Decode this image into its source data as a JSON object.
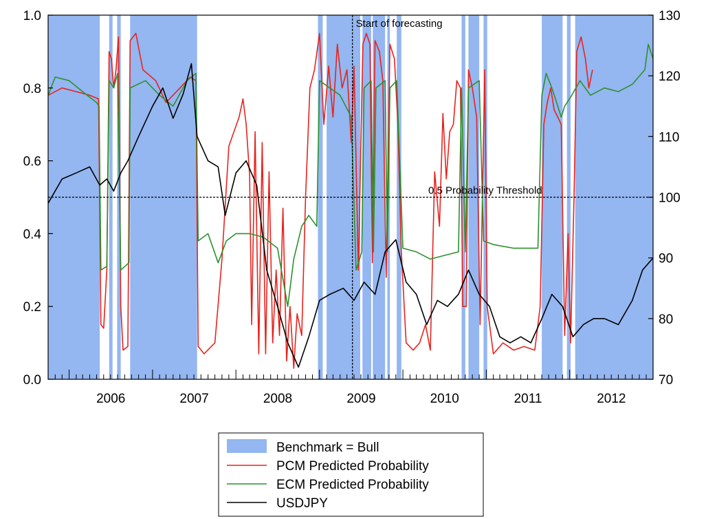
{
  "chart_data": {
    "type": "line",
    "title": "",
    "xlabel": "",
    "ylabel": "",
    "x_range": [
      "2005-10-01",
      "2012-12-31"
    ],
    "year_labels": [
      "2006",
      "2007",
      "2008",
      "2009",
      "2010",
      "2011",
      "2012"
    ],
    "y_left": {
      "lim": [
        0.0,
        1.0
      ],
      "ticks": [
        "0.0",
        "0.2",
        "0.4",
        "0.6",
        "0.8",
        "1.0"
      ]
    },
    "y_right": {
      "lim": [
        70,
        130
      ],
      "ticks": [
        "70",
        "80",
        "90",
        "100",
        "110",
        "120",
        "130"
      ]
    },
    "grid": false,
    "colors": {
      "bull": "#94b6f1",
      "pcm": "#e8221c",
      "ecm": "#2a912a",
      "usdjpy": "#000000"
    },
    "bull_periods": [
      [
        "2005-10-01",
        "2006-05-15"
      ],
      [
        "2006-06-25",
        "2006-07-10"
      ],
      [
        "2006-07-30",
        "2006-08-15"
      ],
      [
        "2006-09-25",
        "2007-07-15"
      ],
      [
        "2008-12-25",
        "2009-01-15"
      ],
      [
        "2009-02-01",
        "2009-06-28"
      ],
      [
        "2009-07-08",
        "2009-08-15"
      ],
      [
        "2009-08-22",
        "2009-10-15"
      ],
      [
        "2009-10-25",
        "2009-11-05"
      ],
      [
        "2009-12-05",
        "2009-12-25"
      ],
      [
        "2010-09-15",
        "2010-10-01"
      ],
      [
        "2010-10-15",
        "2010-12-01"
      ],
      [
        "2010-12-20",
        "2011-01-05"
      ],
      [
        "2011-09-01",
        "2011-12-01"
      ],
      [
        "2011-12-20",
        "2012-01-05"
      ],
      [
        "2012-01-25",
        "2012-12-31"
      ]
    ],
    "threshold": {
      "value": 0.5,
      "label": "0.5 Probability Threshold"
    },
    "forecast_start": {
      "date": "2009-05-25",
      "label": "Start of forecasting"
    },
    "series": [
      {
        "name": "PCM Predicted Probability",
        "axis": "left",
        "points": [
          [
            "2005-10-01",
            0.78
          ],
          [
            "2005-12-01",
            0.8
          ],
          [
            "2006-02-01",
            0.79
          ],
          [
            "2006-04-01",
            0.78
          ],
          [
            "2006-05-10",
            0.77
          ],
          [
            "2006-05-20",
            0.15
          ],
          [
            "2006-06-01",
            0.14
          ],
          [
            "2006-06-15",
            0.3
          ],
          [
            "2006-06-25",
            0.9
          ],
          [
            "2006-07-05",
            0.88
          ],
          [
            "2006-07-15",
            0.8
          ],
          [
            "2006-07-25",
            0.85
          ],
          [
            "2006-08-05",
            0.94
          ],
          [
            "2006-08-15",
            0.2
          ],
          [
            "2006-08-25",
            0.08
          ],
          [
            "2006-09-15",
            0.09
          ],
          [
            "2006-09-25",
            0.93
          ],
          [
            "2006-10-20",
            0.95
          ],
          [
            "2006-11-20",
            0.85
          ],
          [
            "2007-01-15",
            0.82
          ],
          [
            "2007-03-01",
            0.76
          ],
          [
            "2007-05-01",
            0.8
          ],
          [
            "2007-06-15",
            0.83
          ],
          [
            "2007-07-10",
            0.82
          ],
          [
            "2007-07-20",
            0.09
          ],
          [
            "2007-08-15",
            0.07
          ],
          [
            "2007-10-01",
            0.1
          ],
          [
            "2007-11-01",
            0.33
          ],
          [
            "2007-12-01",
            0.64
          ],
          [
            "2008-01-15",
            0.72
          ],
          [
            "2008-02-01",
            0.77
          ],
          [
            "2008-02-15",
            0.7
          ],
          [
            "2008-03-01",
            0.56
          ],
          [
            "2008-03-10",
            0.15
          ],
          [
            "2008-03-25",
            0.68
          ],
          [
            "2008-04-10",
            0.07
          ],
          [
            "2008-04-25",
            0.65
          ],
          [
            "2008-05-10",
            0.07
          ],
          [
            "2008-05-25",
            0.57
          ],
          [
            "2008-06-10",
            0.1
          ],
          [
            "2008-06-25",
            0.3
          ],
          [
            "2008-07-10",
            0.12
          ],
          [
            "2008-07-25",
            0.47
          ],
          [
            "2008-08-10",
            0.05
          ],
          [
            "2008-08-25",
            0.2
          ],
          [
            "2008-09-10",
            0.03
          ],
          [
            "2008-09-25",
            0.18
          ],
          [
            "2008-10-15",
            0.12
          ],
          [
            "2008-11-01",
            0.5
          ],
          [
            "2008-11-20",
            0.8
          ],
          [
            "2008-12-10",
            0.85
          ],
          [
            "2009-01-01",
            0.95
          ],
          [
            "2009-01-20",
            0.7
          ],
          [
            "2009-02-10",
            0.86
          ],
          [
            "2009-03-01",
            0.72
          ],
          [
            "2009-03-20",
            0.92
          ],
          [
            "2009-04-10",
            0.8
          ],
          [
            "2009-05-01",
            0.85
          ],
          [
            "2009-05-20",
            0.65
          ],
          [
            "2009-06-01",
            0.86
          ],
          [
            "2009-06-20",
            0.3
          ],
          [
            "2009-07-10",
            0.92
          ],
          [
            "2009-07-25",
            0.95
          ],
          [
            "2009-08-10",
            0.92
          ],
          [
            "2009-08-20",
            0.32
          ],
          [
            "2009-09-01",
            0.93
          ],
          [
            "2009-09-20",
            0.9
          ],
          [
            "2009-10-05",
            0.82
          ],
          [
            "2009-10-20",
            0.28
          ],
          [
            "2009-11-05",
            0.92
          ],
          [
            "2009-11-25",
            0.88
          ],
          [
            "2009-12-10",
            0.7
          ],
          [
            "2009-12-25",
            0.35
          ],
          [
            "2010-01-15",
            0.1
          ],
          [
            "2010-02-15",
            0.08
          ],
          [
            "2010-03-15",
            0.1
          ],
          [
            "2010-04-10",
            0.15
          ],
          [
            "2010-05-01",
            0.08
          ],
          [
            "2010-05-20",
            0.57
          ],
          [
            "2010-06-10",
            0.42
          ],
          [
            "2010-06-25",
            0.73
          ],
          [
            "2010-07-10",
            0.55
          ],
          [
            "2010-07-25",
            0.68
          ],
          [
            "2010-08-10",
            0.7
          ],
          [
            "2010-08-25",
            0.82
          ],
          [
            "2010-09-10",
            0.8
          ],
          [
            "2010-09-20",
            0.2
          ],
          [
            "2010-10-05",
            0.2
          ],
          [
            "2010-10-15",
            0.85
          ],
          [
            "2010-11-01",
            0.8
          ],
          [
            "2010-11-20",
            0.72
          ],
          [
            "2010-12-05",
            0.15
          ],
          [
            "2010-12-25",
            0.85
          ],
          [
            "2011-01-05",
            0.2
          ],
          [
            "2011-02-01",
            0.07
          ],
          [
            "2011-03-15",
            0.1
          ],
          [
            "2011-05-01",
            0.08
          ],
          [
            "2011-06-15",
            0.09
          ],
          [
            "2011-08-01",
            0.08
          ],
          [
            "2011-08-25",
            0.2
          ],
          [
            "2011-09-10",
            0.7
          ],
          [
            "2011-09-25",
            0.76
          ],
          [
            "2011-10-10",
            0.8
          ],
          [
            "2011-10-25",
            0.74
          ],
          [
            "2011-11-10",
            0.72
          ],
          [
            "2011-11-25",
            0.7
          ],
          [
            "2011-12-10",
            0.12
          ],
          [
            "2011-12-25",
            0.4
          ],
          [
            "2012-01-05",
            0.1
          ],
          [
            "2012-01-20",
            0.5
          ],
          [
            "2012-02-01",
            0.9
          ],
          [
            "2012-02-20",
            0.94
          ],
          [
            "2012-03-10",
            0.88
          ],
          [
            "2012-03-25",
            0.8
          ],
          [
            "2012-04-10",
            0.85
          ]
        ]
      },
      {
        "name": "ECM Predicted Probability",
        "axis": "left",
        "points": [
          [
            "2005-10-01",
            0.78
          ],
          [
            "2005-11-01",
            0.83
          ],
          [
            "2006-01-01",
            0.82
          ],
          [
            "2006-03-01",
            0.79
          ],
          [
            "2006-05-01",
            0.76
          ],
          [
            "2006-05-12",
            0.75
          ],
          [
            "2006-05-20",
            0.3
          ],
          [
            "2006-06-15",
            0.31
          ],
          [
            "2006-06-25",
            0.82
          ],
          [
            "2006-07-15",
            0.8
          ],
          [
            "2006-08-01",
            0.84
          ],
          [
            "2006-08-15",
            0.3
          ],
          [
            "2006-09-20",
            0.32
          ],
          [
            "2006-09-25",
            0.8
          ],
          [
            "2006-12-01",
            0.82
          ],
          [
            "2007-02-01",
            0.78
          ],
          [
            "2007-04-01",
            0.75
          ],
          [
            "2007-06-01",
            0.82
          ],
          [
            "2007-07-10",
            0.84
          ],
          [
            "2007-07-20",
            0.38
          ],
          [
            "2007-09-01",
            0.4
          ],
          [
            "2007-10-15",
            0.32
          ],
          [
            "2007-11-20",
            0.38
          ],
          [
            "2008-01-01",
            0.4
          ],
          [
            "2008-03-01",
            0.4
          ],
          [
            "2008-05-01",
            0.39
          ],
          [
            "2008-07-01",
            0.36
          ],
          [
            "2008-08-15",
            0.2
          ],
          [
            "2008-09-10",
            0.33
          ],
          [
            "2008-10-15",
            0.42
          ],
          [
            "2008-11-15",
            0.45
          ],
          [
            "2008-12-20",
            0.42
          ],
          [
            "2009-01-01",
            0.82
          ],
          [
            "2009-02-15",
            0.8
          ],
          [
            "2009-04-01",
            0.78
          ],
          [
            "2009-05-20",
            0.72
          ],
          [
            "2009-06-10",
            0.3
          ],
          [
            "2009-07-05",
            0.35
          ],
          [
            "2009-07-15",
            0.8
          ],
          [
            "2009-08-15",
            0.82
          ],
          [
            "2009-08-25",
            0.35
          ],
          [
            "2009-09-05",
            0.8
          ],
          [
            "2009-10-15",
            0.82
          ],
          [
            "2009-10-25",
            0.35
          ],
          [
            "2009-11-05",
            0.8
          ],
          [
            "2009-12-05",
            0.82
          ],
          [
            "2010-01-01",
            0.36
          ],
          [
            "2010-03-01",
            0.35
          ],
          [
            "2010-05-01",
            0.33
          ],
          [
            "2010-07-01",
            0.34
          ],
          [
            "2010-09-01",
            0.35
          ],
          [
            "2010-09-15",
            0.8
          ],
          [
            "2010-10-01",
            0.35
          ],
          [
            "2010-10-15",
            0.8
          ],
          [
            "2010-12-01",
            0.82
          ],
          [
            "2010-12-20",
            0.38
          ],
          [
            "2011-02-01",
            0.37
          ],
          [
            "2011-05-01",
            0.36
          ],
          [
            "2011-08-15",
            0.36
          ],
          [
            "2011-09-01",
            0.78
          ],
          [
            "2011-09-20",
            0.84
          ],
          [
            "2011-10-15",
            0.8
          ],
          [
            "2011-11-25",
            0.72
          ],
          [
            "2011-12-10",
            0.75
          ],
          [
            "2012-01-10",
            0.78
          ],
          [
            "2012-02-15",
            0.82
          ],
          [
            "2012-04-01",
            0.78
          ],
          [
            "2012-06-01",
            0.8
          ],
          [
            "2012-08-01",
            0.79
          ],
          [
            "2012-10-01",
            0.81
          ],
          [
            "2012-11-25",
            0.85
          ],
          [
            "2012-12-10",
            0.92
          ],
          [
            "2012-12-31",
            0.88
          ]
        ]
      },
      {
        "name": "USDJPY",
        "axis": "right",
        "points": [
          [
            "2005-10-01",
            99.0
          ],
          [
            "2005-12-01",
            103.0
          ],
          [
            "2006-02-01",
            104.0
          ],
          [
            "2006-04-01",
            105.0
          ],
          [
            "2006-05-15",
            102.0
          ],
          [
            "2006-06-15",
            103.0
          ],
          [
            "2006-07-15",
            101.0
          ],
          [
            "2006-08-15",
            104.0
          ],
          [
            "2006-09-15",
            106.0
          ],
          [
            "2006-11-01",
            110.0
          ],
          [
            "2007-01-01",
            115.0
          ],
          [
            "2007-02-15",
            118.0
          ],
          [
            "2007-04-01",
            113.0
          ],
          [
            "2007-05-15",
            117.0
          ],
          [
            "2007-06-20",
            122.0
          ],
          [
            "2007-07-15",
            110.0
          ],
          [
            "2007-09-01",
            106.0
          ],
          [
            "2007-10-15",
            105.0
          ],
          [
            "2007-11-15",
            97.0
          ],
          [
            "2008-01-01",
            104.0
          ],
          [
            "2008-02-15",
            106.0
          ],
          [
            "2008-04-01",
            102.0
          ],
          [
            "2008-05-15",
            88.0
          ],
          [
            "2008-07-01",
            82.0
          ],
          [
            "2008-08-15",
            76.0
          ],
          [
            "2008-10-01",
            72.0
          ],
          [
            "2008-11-15",
            77.0
          ],
          [
            "2009-01-01",
            83.0
          ],
          [
            "2009-02-15",
            84.0
          ],
          [
            "2009-04-15",
            85.0
          ],
          [
            "2009-06-01",
            83.0
          ],
          [
            "2009-07-15",
            86.0
          ],
          [
            "2009-09-01",
            84.0
          ],
          [
            "2009-10-15",
            91.0
          ],
          [
            "2009-12-01",
            93.0
          ],
          [
            "2010-01-15",
            86.0
          ],
          [
            "2010-03-01",
            84.0
          ],
          [
            "2010-04-15",
            79.0
          ],
          [
            "2010-06-01",
            83.0
          ],
          [
            "2010-07-15",
            82.0
          ],
          [
            "2010-09-01",
            84.0
          ],
          [
            "2010-10-15",
            88.0
          ],
          [
            "2010-12-01",
            84.0
          ],
          [
            "2011-01-15",
            82.0
          ],
          [
            "2011-03-01",
            77.0
          ],
          [
            "2011-04-15",
            76.0
          ],
          [
            "2011-06-01",
            77.0
          ],
          [
            "2011-07-15",
            76.0
          ],
          [
            "2011-09-01",
            80.0
          ],
          [
            "2011-10-15",
            84.0
          ],
          [
            "2011-12-01",
            82.0
          ],
          [
            "2012-01-15",
            77.0
          ],
          [
            "2012-03-01",
            79.0
          ],
          [
            "2012-04-15",
            80.0
          ],
          [
            "2012-06-01",
            80.0
          ],
          [
            "2012-08-01",
            79.0
          ],
          [
            "2012-10-01",
            83.0
          ],
          [
            "2012-11-15",
            88.0
          ],
          [
            "2012-12-31",
            90.0
          ]
        ]
      },
      {
        "name": "Benchmark = Bull",
        "axis": "left",
        "legend_only": true
      }
    ],
    "legend": {
      "placement": "bottom-center",
      "entries": [
        {
          "label": "Benchmark = Bull",
          "kind": "patch",
          "color_key": "bull"
        },
        {
          "label": "PCM Predicted Probability",
          "kind": "line",
          "color_key": "pcm"
        },
        {
          "label": "ECM Predicted Probability",
          "kind": "line",
          "color_key": "ecm"
        },
        {
          "label": "USDJPY",
          "kind": "line",
          "color_key": "usdjpy"
        }
      ]
    }
  }
}
